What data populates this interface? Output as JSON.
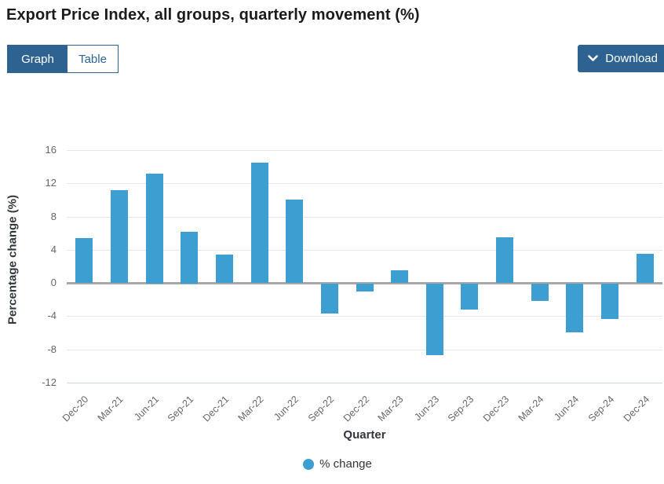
{
  "header": {
    "title": "Export Price Index, all groups, quarterly movement (%)"
  },
  "toolbar": {
    "graph_label": "Graph",
    "table_label": "Table",
    "download_label": "Download",
    "chevron_icon": "chevron-down",
    "button_color": "#2e6391"
  },
  "chart_data": {
    "type": "bar",
    "title": "Export Price Index, all groups, quarterly movement (%)",
    "categories": [
      "Dec-20",
      "Mar-21",
      "Jun-21",
      "Sep-21",
      "Dec-21",
      "Mar-22",
      "Jun-22",
      "Sep-22",
      "Dec-22",
      "Mar-23",
      "Jun-23",
      "Sep-23",
      "Dec-23",
      "Mar-24",
      "Jun-24",
      "Sep-24",
      "Dec-24"
    ],
    "series": [
      {
        "name": "% change",
        "values": [
          5.4,
          11.2,
          13.2,
          6.2,
          3.4,
          14.5,
          10.0,
          -3.6,
          -0.9,
          1.5,
          -8.6,
          -3.1,
          5.5,
          -2.1,
          -5.9,
          -4.3,
          3.5
        ]
      }
    ],
    "xlabel": "Quarter",
    "ylabel": "Percentage change (%)",
    "ylim": [
      -12,
      16
    ],
    "yticks": [
      16,
      12,
      8,
      4,
      0,
      -4,
      -8,
      -12
    ],
    "grid": true,
    "legend_position": "bottom",
    "bar_color": "#3d9ed1",
    "zero_line_color": "#a8a8a8",
    "gridline_color": "#e7e7e7"
  }
}
